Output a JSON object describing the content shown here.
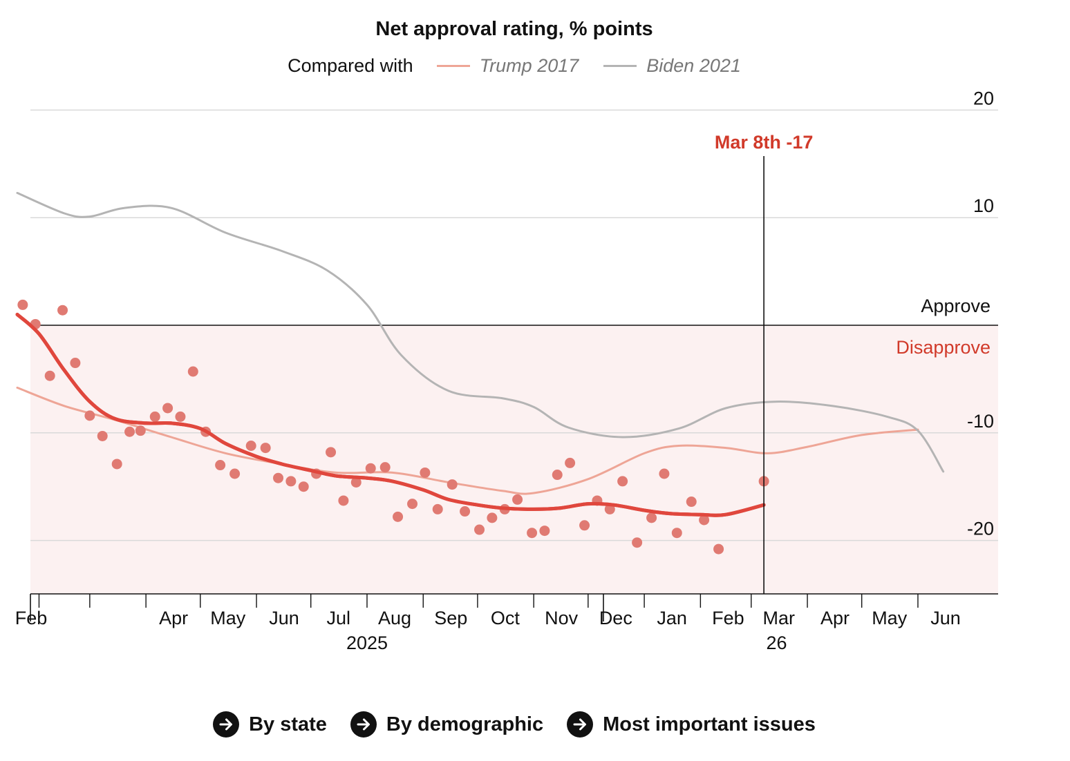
{
  "header": {
    "title": "Net approval rating, % points",
    "legend_lead": "Compared with",
    "legend_items": [
      {
        "label": "Trump 2017",
        "color": "#eea596"
      },
      {
        "label": "Biden 2021",
        "color": "#b4b4b4"
      }
    ]
  },
  "links": [
    {
      "label": "By state",
      "icon": "arrow-right-icon"
    },
    {
      "label": "By demographic",
      "icon": "arrow-right-icon"
    },
    {
      "label": "Most important issues",
      "icon": "arrow-right-icon"
    }
  ],
  "colors": {
    "trend": "#e0473d",
    "dots": "#e07a72",
    "disapprove_band": "#fcf1f1",
    "highlight": "#d13a2a",
    "gridline": "#d9d9d9"
  },
  "chart_data": {
    "type": "line",
    "ylim": [
      -25,
      20
    ],
    "yticks": [
      20,
      10,
      -10,
      -20
    ],
    "xlim": [
      "2025-01-20",
      "2026-06-30"
    ],
    "months": [
      {
        "date": "2025-02-01",
        "label": "Feb"
      },
      {
        "date": "2025-03-01",
        "label": ""
      },
      {
        "date": "2025-04-01",
        "label": "Apr"
      },
      {
        "date": "2025-05-01",
        "label": "May"
      },
      {
        "date": "2025-06-01",
        "label": "Jun"
      },
      {
        "date": "2025-07-01",
        "label": "Jul"
      },
      {
        "date": "2025-08-01",
        "label": "Aug"
      },
      {
        "date": "2025-09-01",
        "label": "Sep"
      },
      {
        "date": "2025-10-01",
        "label": "Oct"
      },
      {
        "date": "2025-11-01",
        "label": "Nov"
      },
      {
        "date": "2025-12-01",
        "label": "Dec"
      },
      {
        "date": "2026-01-01",
        "label": "Jan"
      },
      {
        "date": "2026-02-01",
        "label": "Feb"
      },
      {
        "date": "2026-03-01",
        "label": "Mar"
      },
      {
        "date": "2026-04-01",
        "label": "Apr"
      },
      {
        "date": "2026-05-01",
        "label": "May"
      },
      {
        "date": "2026-06-01",
        "label": "Jun"
      }
    ],
    "year_labels": [
      {
        "date": "2025-08-01",
        "label": "2025"
      },
      {
        "date": "2026-03-15",
        "label": "26"
      }
    ],
    "zones": {
      "approve": "Approve",
      "disapprove": "Disapprove"
    },
    "marker": {
      "date": "2026-03-08",
      "label": "Mar 8th -17"
    },
    "series": [
      {
        "name": "Trump 2017",
        "values": [
          [
            "2025-01-20",
            -5.8
          ],
          [
            "2025-02-15",
            -7.5
          ],
          [
            "2025-03-15",
            -8.8
          ],
          [
            "2025-04-15",
            -10.4
          ],
          [
            "2025-05-15",
            -11.9
          ],
          [
            "2025-06-15",
            -12.9
          ],
          [
            "2025-07-15",
            -13.7
          ],
          [
            "2025-08-15",
            -13.7
          ],
          [
            "2025-09-15",
            -14.6
          ],
          [
            "2025-10-15",
            -15.4
          ],
          [
            "2025-11-01",
            -15.6
          ],
          [
            "2025-12-01",
            -14.3
          ],
          [
            "2026-01-01",
            -11.9
          ],
          [
            "2026-01-20",
            -11.2
          ],
          [
            "2026-02-15",
            -11.4
          ],
          [
            "2026-03-10",
            -11.9
          ],
          [
            "2026-04-01",
            -11.3
          ],
          [
            "2026-05-01",
            -10.2
          ],
          [
            "2026-06-01",
            -9.7
          ]
        ]
      },
      {
        "name": "Biden 2021",
        "values": [
          [
            "2025-01-20",
            12.3
          ],
          [
            "2025-02-15",
            10.4
          ],
          [
            "2025-03-01",
            10.1
          ],
          [
            "2025-03-20",
            10.9
          ],
          [
            "2025-04-15",
            10.9
          ],
          [
            "2025-05-15",
            8.6
          ],
          [
            "2025-06-15",
            6.9
          ],
          [
            "2025-07-10",
            5.1
          ],
          [
            "2025-08-01",
            1.9
          ],
          [
            "2025-08-20",
            -2.8
          ],
          [
            "2025-09-15",
            -6.1
          ],
          [
            "2025-10-15",
            -6.8
          ],
          [
            "2025-11-01",
            -7.6
          ],
          [
            "2025-11-20",
            -9.5
          ],
          [
            "2025-12-20",
            -10.4
          ],
          [
            "2026-01-20",
            -9.6
          ],
          [
            "2026-02-15",
            -7.7
          ],
          [
            "2026-03-15",
            -7.1
          ],
          [
            "2026-04-15",
            -7.5
          ],
          [
            "2026-05-15",
            -8.5
          ],
          [
            "2026-06-01",
            -9.8
          ],
          [
            "2026-06-15",
            -13.6
          ]
        ]
      },
      {
        "name": "Trend",
        "values": [
          [
            "2025-01-20",
            1.0
          ],
          [
            "2025-02-01",
            -0.8
          ],
          [
            "2025-02-15",
            -4.2
          ],
          [
            "2025-03-01",
            -7.1
          ],
          [
            "2025-03-15",
            -8.7
          ],
          [
            "2025-04-01",
            -9.1
          ],
          [
            "2025-04-15",
            -9.1
          ],
          [
            "2025-05-01",
            -9.6
          ],
          [
            "2025-05-15",
            -11.0
          ],
          [
            "2025-06-01",
            -12.2
          ],
          [
            "2025-06-15",
            -12.9
          ],
          [
            "2025-07-01",
            -13.5
          ],
          [
            "2025-07-15",
            -14.0
          ],
          [
            "2025-08-01",
            -14.2
          ],
          [
            "2025-08-15",
            -14.5
          ],
          [
            "2025-09-01",
            -15.3
          ],
          [
            "2025-09-15",
            -16.2
          ],
          [
            "2025-10-01",
            -16.7
          ],
          [
            "2025-10-15",
            -17.0
          ],
          [
            "2025-11-01",
            -17.1
          ],
          [
            "2025-11-15",
            -17.0
          ],
          [
            "2025-12-01",
            -16.6
          ],
          [
            "2025-12-15",
            -16.7
          ],
          [
            "2026-01-01",
            -17.2
          ],
          [
            "2026-01-15",
            -17.5
          ],
          [
            "2026-02-01",
            -17.6
          ],
          [
            "2026-02-15",
            -17.6
          ],
          [
            "2026-03-08",
            -16.7
          ]
        ]
      },
      {
        "name": "Polls",
        "values": [
          [
            "2025-01-23",
            1.9
          ],
          [
            "2025-01-30",
            0.1
          ],
          [
            "2025-02-07",
            -4.7
          ],
          [
            "2025-02-14",
            1.4
          ],
          [
            "2025-02-21",
            -3.5
          ],
          [
            "2025-03-01",
            -8.4
          ],
          [
            "2025-03-08",
            -10.3
          ],
          [
            "2025-03-16",
            -12.9
          ],
          [
            "2025-03-23",
            -9.9
          ],
          [
            "2025-03-29",
            -9.8
          ],
          [
            "2025-04-06",
            -8.5
          ],
          [
            "2025-04-13",
            -7.7
          ],
          [
            "2025-04-20",
            -8.5
          ],
          [
            "2025-04-27",
            -4.3
          ],
          [
            "2025-05-04",
            -9.9
          ],
          [
            "2025-05-12",
            -13.0
          ],
          [
            "2025-05-20",
            -13.8
          ],
          [
            "2025-05-29",
            -11.2
          ],
          [
            "2025-06-06",
            -11.4
          ],
          [
            "2025-06-13",
            -14.2
          ],
          [
            "2025-06-20",
            -14.5
          ],
          [
            "2025-06-27",
            -15.0
          ],
          [
            "2025-07-04",
            -13.8
          ],
          [
            "2025-07-12",
            -11.8
          ],
          [
            "2025-07-19",
            -16.3
          ],
          [
            "2025-07-26",
            -14.6
          ],
          [
            "2025-08-03",
            -13.3
          ],
          [
            "2025-08-11",
            -13.2
          ],
          [
            "2025-08-18",
            -17.8
          ],
          [
            "2025-08-26",
            -16.6
          ],
          [
            "2025-09-02",
            -13.7
          ],
          [
            "2025-09-09",
            -17.1
          ],
          [
            "2025-09-17",
            -14.8
          ],
          [
            "2025-09-24",
            -17.3
          ],
          [
            "2025-10-02",
            -19.0
          ],
          [
            "2025-10-09",
            -17.9
          ],
          [
            "2025-10-16",
            -17.1
          ],
          [
            "2025-10-23",
            -16.2
          ],
          [
            "2025-10-31",
            -19.3
          ],
          [
            "2025-11-07",
            -19.1
          ],
          [
            "2025-11-14",
            -13.9
          ],
          [
            "2025-11-21",
            -12.8
          ],
          [
            "2025-11-29",
            -18.6
          ],
          [
            "2025-12-06",
            -16.3
          ],
          [
            "2025-12-13",
            -17.1
          ],
          [
            "2025-12-20",
            -14.5
          ],
          [
            "2025-12-28",
            -20.2
          ],
          [
            "2026-01-05",
            -17.9
          ],
          [
            "2026-01-12",
            -13.8
          ],
          [
            "2026-01-19",
            -19.3
          ],
          [
            "2026-01-27",
            -16.4
          ],
          [
            "2026-02-03",
            -18.1
          ],
          [
            "2026-02-11",
            -20.8
          ],
          [
            "2026-03-08",
            -14.5
          ]
        ]
      }
    ]
  }
}
